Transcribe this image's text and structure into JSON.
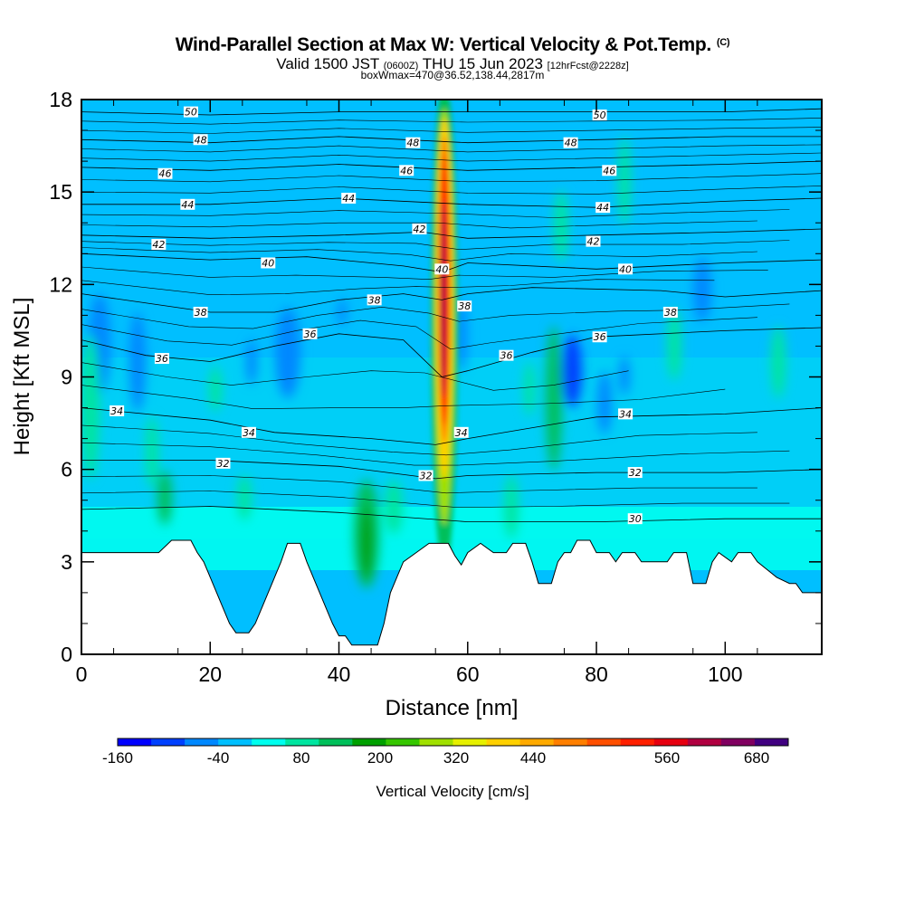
{
  "title": "Wind-Parallel Section at Max W: Vertical Velocity & Pot.Temp.",
  "copyright_mark": "(C)",
  "subtitle_valid": "Valid 1500 JST",
  "subtitle_z": "(0600Z)",
  "subtitle_date": "THU 15 Jun 2023",
  "subtitle_fcst": "[12hrFcst@2228z]",
  "subtitle2": "boxWmax=470@36.52,138.44,2817m",
  "chart_data": {
    "type": "heatmap",
    "xlabel": "Distance [nm]",
    "ylabel": "Height [Kft MSL]",
    "xlim": [
      0,
      115
    ],
    "ylim": [
      0,
      18
    ],
    "x_ticks": [
      0,
      20,
      40,
      60,
      80,
      100
    ],
    "y_ticks": [
      0,
      3,
      6,
      9,
      12,
      15,
      18
    ],
    "terrain_kft": [
      [
        0,
        3.3
      ],
      [
        5,
        3.3
      ],
      [
        10,
        3.3
      ],
      [
        12,
        3.3
      ],
      [
        14,
        3.7
      ],
      [
        17,
        3.7
      ],
      [
        18,
        3.3
      ],
      [
        19,
        3.0
      ],
      [
        20,
        2.5
      ],
      [
        21,
        2.0
      ],
      [
        22,
        1.5
      ],
      [
        23,
        1.0
      ],
      [
        24,
        0.7
      ],
      [
        26,
        0.7
      ],
      [
        27,
        1.0
      ],
      [
        28,
        1.5
      ],
      [
        29,
        2.0
      ],
      [
        30,
        2.5
      ],
      [
        31,
        3.0
      ],
      [
        32,
        3.6
      ],
      [
        34,
        3.6
      ],
      [
        35,
        3.0
      ],
      [
        36,
        2.5
      ],
      [
        37,
        2.0
      ],
      [
        38,
        1.5
      ],
      [
        39,
        1.0
      ],
      [
        40,
        0.6
      ],
      [
        41,
        0.6
      ],
      [
        42,
        0.3
      ],
      [
        46,
        0.3
      ],
      [
        47,
        1.0
      ],
      [
        48,
        2.0
      ],
      [
        49,
        2.5
      ],
      [
        50,
        3.0
      ],
      [
        52,
        3.3
      ],
      [
        54,
        3.6
      ],
      [
        57,
        3.6
      ],
      [
        58,
        3.2
      ],
      [
        59,
        2.9
      ],
      [
        60,
        3.3
      ],
      [
        62,
        3.6
      ],
      [
        64,
        3.3
      ],
      [
        66,
        3.3
      ],
      [
        67,
        3.6
      ],
      [
        69,
        3.6
      ],
      [
        70,
        3.0
      ],
      [
        71,
        2.3
      ],
      [
        73,
        2.3
      ],
      [
        74,
        3.0
      ],
      [
        75,
        3.3
      ],
      [
        76,
        3.3
      ],
      [
        77,
        3.7
      ],
      [
        79,
        3.7
      ],
      [
        80,
        3.3
      ],
      [
        82,
        3.3
      ],
      [
        83,
        3.0
      ],
      [
        84,
        3.3
      ],
      [
        86,
        3.3
      ],
      [
        87,
        3.0
      ],
      [
        91,
        3.0
      ],
      [
        92,
        3.3
      ],
      [
        94,
        3.3
      ],
      [
        95,
        2.3
      ],
      [
        97,
        2.3
      ],
      [
        98,
        3.0
      ],
      [
        99,
        3.3
      ],
      [
        101,
        3.0
      ],
      [
        102,
        3.3
      ],
      [
        104,
        3.3
      ],
      [
        105,
        3.0
      ],
      [
        108,
        2.5
      ],
      [
        110,
        2.3
      ],
      [
        111,
        2.3
      ],
      [
        112,
        2.0
      ],
      [
        115,
        2.0
      ]
    ],
    "theta_contours": [
      {
        "label": "30",
        "pts": [
          [
            0,
            4.7
          ],
          [
            20,
            4.8
          ],
          [
            40,
            4.6
          ],
          [
            60,
            4.3
          ],
          [
            80,
            4.3
          ],
          [
            100,
            4.4
          ],
          [
            115,
            4.4
          ]
        ]
      },
      {
        "label": "32",
        "pts": [
          [
            0,
            6.3
          ],
          [
            20,
            6.3
          ],
          [
            40,
            6.1
          ],
          [
            55,
            5.7
          ],
          [
            60,
            5.8
          ],
          [
            80,
            5.9
          ],
          [
            100,
            5.9
          ],
          [
            115,
            6.0
          ]
        ]
      },
      {
        "label": "34",
        "pts": [
          [
            0,
            8.0
          ],
          [
            20,
            7.6
          ],
          [
            30,
            7.2
          ],
          [
            45,
            7.0
          ],
          [
            55,
            6.8
          ],
          [
            60,
            7.0
          ],
          [
            80,
            7.7
          ],
          [
            100,
            7.8
          ],
          [
            115,
            8.0
          ]
        ]
      },
      {
        "label": "36",
        "pts": [
          [
            0,
            10.2
          ],
          [
            10,
            9.7
          ],
          [
            20,
            9.5
          ],
          [
            30,
            10.0
          ],
          [
            40,
            10.4
          ],
          [
            50,
            10.2
          ],
          [
            56,
            9.0
          ],
          [
            60,
            9.2
          ],
          [
            70,
            9.8
          ],
          [
            80,
            10.3
          ],
          [
            100,
            10.5
          ],
          [
            115,
            10.6
          ]
        ]
      },
      {
        "label": "38",
        "pts": [
          [
            0,
            11.7
          ],
          [
            20,
            11.1
          ],
          [
            30,
            11.1
          ],
          [
            40,
            11.5
          ],
          [
            50,
            11.7
          ],
          [
            56,
            11.5
          ],
          [
            60,
            11.7
          ],
          [
            70,
            11.9
          ],
          [
            90,
            11.8
          ],
          [
            100,
            11.6
          ],
          [
            115,
            11.8
          ]
        ]
      },
      {
        "label": "40",
        "pts": [
          [
            0,
            13.0
          ],
          [
            20,
            12.8
          ],
          [
            35,
            12.9
          ],
          [
            50,
            12.6
          ],
          [
            56,
            12.4
          ],
          [
            60,
            12.7
          ],
          [
            80,
            12.5
          ],
          [
            100,
            12.7
          ],
          [
            115,
            12.8
          ]
        ]
      },
      {
        "label": "42",
        "pts": [
          [
            0,
            13.6
          ],
          [
            20,
            13.5
          ],
          [
            40,
            13.6
          ],
          [
            53,
            13.7
          ],
          [
            60,
            13.5
          ],
          [
            80,
            13.6
          ],
          [
            100,
            13.7
          ],
          [
            115,
            13.8
          ]
        ]
      },
      {
        "label": "44",
        "pts": [
          [
            0,
            14.6
          ],
          [
            20,
            14.6
          ],
          [
            40,
            14.8
          ],
          [
            60,
            14.6
          ],
          [
            80,
            14.5
          ],
          [
            100,
            14.7
          ],
          [
            115,
            14.8
          ]
        ]
      },
      {
        "label": "46",
        "pts": [
          [
            0,
            15.8
          ],
          [
            20,
            15.7
          ],
          [
            40,
            15.9
          ],
          [
            60,
            15.7
          ],
          [
            80,
            15.8
          ],
          [
            100,
            15.9
          ],
          [
            115,
            16.0
          ]
        ]
      },
      {
        "label": "48",
        "pts": [
          [
            0,
            16.7
          ],
          [
            20,
            16.6
          ],
          [
            40,
            16.8
          ],
          [
            60,
            16.6
          ],
          [
            80,
            16.7
          ],
          [
            100,
            16.8
          ],
          [
            115,
            16.8
          ]
        ]
      },
      {
        "label": "50",
        "pts": [
          [
            0,
            17.6
          ],
          [
            20,
            17.5
          ],
          [
            40,
            17.6
          ],
          [
            60,
            17.6
          ],
          [
            80,
            17.6
          ],
          [
            100,
            17.6
          ],
          [
            115,
            17.7
          ]
        ]
      }
    ],
    "contour_labels": [
      {
        "text": "50",
        "x": 17,
        "y": 17.6
      },
      {
        "text": "50",
        "x": 80.5,
        "y": 17.5
      },
      {
        "text": "48",
        "x": 18.5,
        "y": 16.7
      },
      {
        "text": "48",
        "x": 51.5,
        "y": 16.6
      },
      {
        "text": "48",
        "x": 76,
        "y": 16.6
      },
      {
        "text": "46",
        "x": 13,
        "y": 15.6
      },
      {
        "text": "46",
        "x": 50.5,
        "y": 15.7
      },
      {
        "text": "46",
        "x": 82,
        "y": 15.7
      },
      {
        "text": "44",
        "x": 16.5,
        "y": 14.6
      },
      {
        "text": "44",
        "x": 41.5,
        "y": 14.8
      },
      {
        "text": "44",
        "x": 81,
        "y": 14.5
      },
      {
        "text": "42",
        "x": 12,
        "y": 13.3
      },
      {
        "text": "42",
        "x": 52.5,
        "y": 13.8
      },
      {
        "text": "42",
        "x": 79.5,
        "y": 13.4
      },
      {
        "text": "40",
        "x": 29,
        "y": 12.7
      },
      {
        "text": "40",
        "x": 56,
        "y": 12.5
      },
      {
        "text": "40",
        "x": 84.5,
        "y": 12.5
      },
      {
        "text": "38",
        "x": 18.5,
        "y": 11.1
      },
      {
        "text": "38",
        "x": 45.5,
        "y": 11.5
      },
      {
        "text": "38",
        "x": 59.5,
        "y": 11.3
      },
      {
        "text": "38",
        "x": 91.5,
        "y": 11.1
      },
      {
        "text": "36",
        "x": 12.5,
        "y": 9.6
      },
      {
        "text": "36",
        "x": 35.5,
        "y": 10.4
      },
      {
        "text": "36",
        "x": 66,
        "y": 9.7
      },
      {
        "text": "36",
        "x": 80.5,
        "y": 10.3
      },
      {
        "text": "34",
        "x": 5.5,
        "y": 7.9
      },
      {
        "text": "34",
        "x": 26,
        "y": 7.2
      },
      {
        "text": "34",
        "x": 59,
        "y": 7.2
      },
      {
        "text": "34",
        "x": 84.5,
        "y": 7.8
      },
      {
        "text": "32",
        "x": 22,
        "y": 6.2
      },
      {
        "text": "32",
        "x": 53.5,
        "y": 5.8
      },
      {
        "text": "32",
        "x": 86,
        "y": 5.9
      },
      {
        "text": "30",
        "x": 86,
        "y": 4.4
      }
    ],
    "colorbar": {
      "label": "Vertical Velocity [cm/s]",
      "tick_labels": [
        "-160",
        "-40",
        "80",
        "200",
        "320",
        "440",
        "560",
        "680"
      ],
      "colors": [
        "#0000ff",
        "#0040ff",
        "#0088ff",
        "#00bfff",
        "#00ffee",
        "#00e5a0",
        "#00bf5a",
        "#00a000",
        "#36c600",
        "#a0e000",
        "#e6f000",
        "#ffd000",
        "#ffaa00",
        "#ff7f00",
        "#ff4f00",
        "#ff2000",
        "#e60010",
        "#b00040",
        "#800060",
        "#400080"
      ]
    }
  }
}
